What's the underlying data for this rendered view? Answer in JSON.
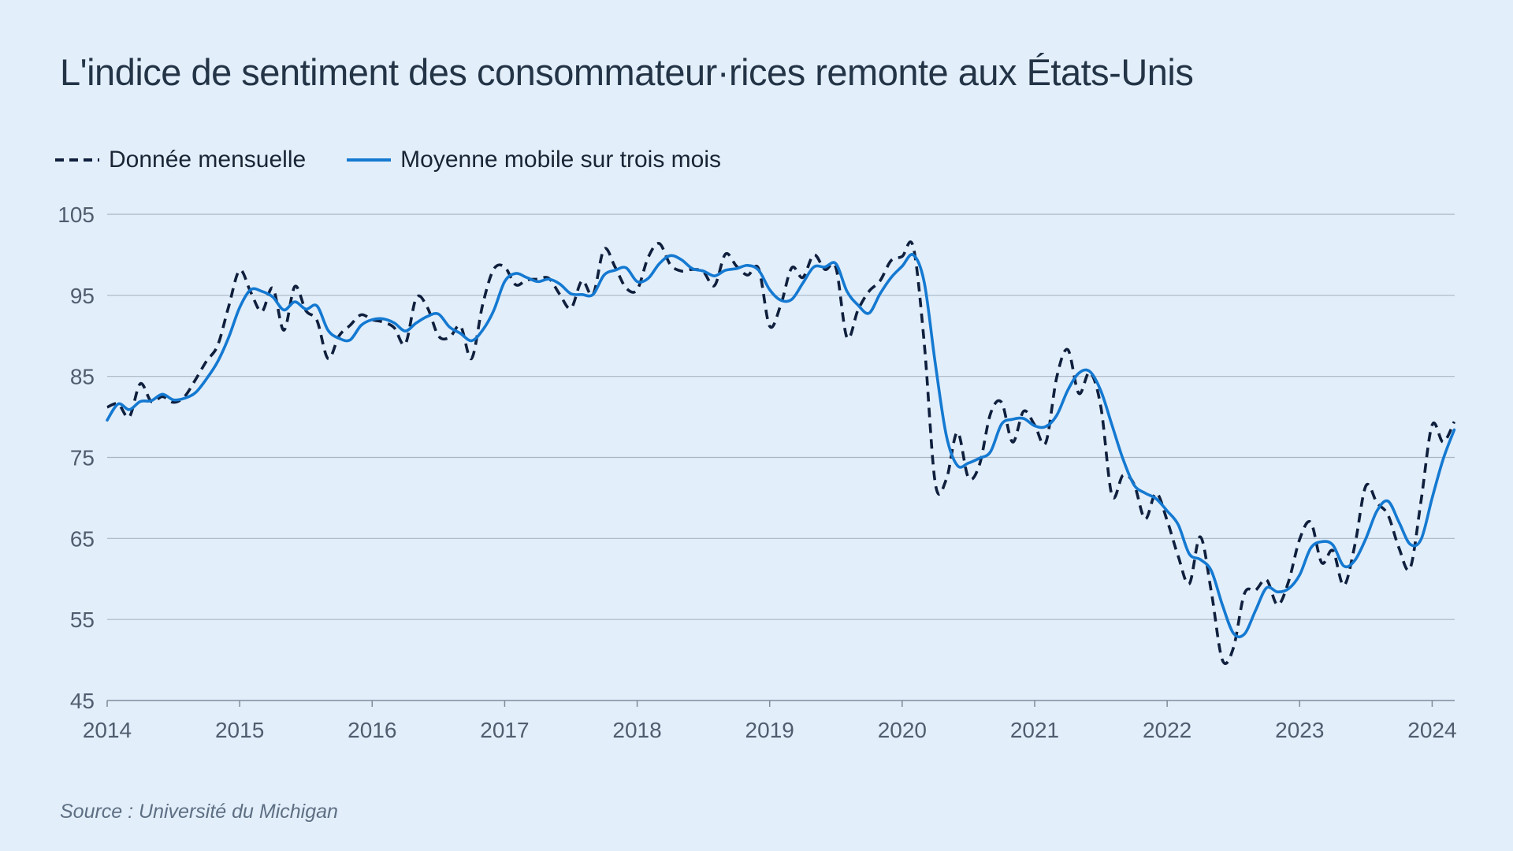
{
  "title": "L'indice de sentiment des consommateur·rices remonte aux États-Unis",
  "legend": {
    "monthly": "Donnée mensuelle",
    "moving_avg": "Moyenne mobile sur trois mois"
  },
  "source": "Source : Université du Michigan",
  "colors": {
    "background": "#e2eefa",
    "monthly": "#0f1f3d",
    "moving_avg": "#1479d1",
    "grid": "#a9b6c4"
  },
  "chart_data": {
    "type": "line",
    "title": "L'indice de sentiment des consommateur·rices remonte aux États-Unis",
    "xlabel": "",
    "ylabel": "",
    "x_range": [
      2014.0,
      2024.17
    ],
    "ylim": [
      45,
      105
    ],
    "y_ticks": [
      45,
      55,
      65,
      75,
      85,
      95,
      105
    ],
    "x_ticks": [
      2014,
      2015,
      2016,
      2017,
      2018,
      2019,
      2020,
      2021,
      2022,
      2023,
      2024
    ],
    "x_tick_labels": [
      "2014",
      "2015",
      "2016",
      "2017",
      "2018",
      "2019",
      "2020",
      "2021",
      "2022",
      "2023",
      "2024"
    ],
    "grid": true,
    "legend_position": "top-left",
    "x_start": "2014-01",
    "x_step": "month",
    "series": [
      {
        "name": "Donnée mensuelle",
        "style": "dashed",
        "values": [
          81.2,
          81.6,
          80.0,
          84.1,
          81.9,
          82.5,
          81.8,
          82.5,
          84.6,
          86.9,
          88.8,
          93.6,
          98.1,
          95.4,
          93.0,
          95.9,
          90.7,
          96.1,
          93.1,
          91.9,
          87.2,
          90.0,
          91.3,
          92.6,
          92.0,
          91.7,
          91.0,
          89.0,
          94.7,
          93.5,
          90.0,
          89.8,
          91.2,
          87.2,
          93.8,
          98.2,
          98.5,
          96.3,
          96.9,
          97.0,
          97.1,
          95.1,
          93.4,
          96.8,
          95.1,
          100.7,
          98.5,
          95.9,
          95.7,
          99.7,
          101.4,
          98.8,
          98.0,
          98.2,
          97.9,
          96.2,
          100.1,
          98.6,
          97.5,
          98.3,
          91.2,
          93.8,
          98.4,
          97.2,
          100.0,
          98.2,
          98.4,
          89.8,
          93.2,
          95.5,
          96.8,
          99.3,
          99.8,
          101.0,
          89.1,
          71.8,
          72.3,
          78.1,
          72.5,
          74.1,
          80.4,
          81.8,
          76.9,
          80.7,
          79.0,
          76.8,
          84.9,
          88.3,
          82.9,
          85.5,
          81.2,
          70.3,
          72.8,
          71.7,
          67.4,
          70.6,
          67.2,
          62.8,
          59.4,
          65.2,
          58.4,
          50.0,
          51.5,
          58.2,
          58.6,
          59.9,
          56.8,
          59.7,
          64.9,
          67.0,
          62.0,
          63.5,
          59.2,
          64.2,
          71.5,
          69.4,
          67.9,
          63.8,
          61.3,
          69.7,
          79.0,
          76.9,
          79.4
        ]
      },
      {
        "name": "Moyenne mobile sur trois mois",
        "style": "solid",
        "values": [
          79.6,
          81.6,
          80.9,
          81.9,
          82.0,
          82.8,
          82.1,
          82.3,
          83.0,
          84.7,
          86.8,
          89.8,
          93.5,
          95.7,
          95.5,
          94.8,
          93.2,
          94.2,
          93.3,
          93.7,
          90.7,
          89.7,
          89.5,
          91.3,
          92.0,
          92.1,
          91.6,
          90.6,
          91.6,
          92.4,
          92.7,
          91.1,
          90.3,
          89.4,
          90.7,
          93.1,
          96.7,
          97.7,
          97.2,
          96.7,
          97.0,
          96.4,
          95.2,
          95.1,
          95.1,
          97.5,
          98.1,
          98.4,
          96.7,
          97.1,
          98.9,
          99.9,
          99.4,
          98.3,
          98.0,
          97.4,
          98.1,
          98.3,
          98.7,
          98.1,
          95.7,
          94.4,
          94.5,
          96.5,
          98.5,
          98.5,
          98.9,
          95.5,
          93.8,
          92.8,
          95.2,
          97.2,
          98.6,
          100.0,
          96.6,
          86.6,
          77.7,
          74.0,
          74.3,
          74.9,
          75.7,
          79.1,
          79.7,
          79.8,
          78.9,
          78.8,
          80.2,
          83.3,
          85.4,
          85.6,
          83.2,
          79.0,
          74.8,
          71.6,
          70.6,
          69.9,
          68.4,
          66.7,
          63.1,
          62.4,
          61.0,
          56.8,
          53.3,
          53.2,
          56.1,
          58.9,
          58.4,
          58.8,
          60.5,
          63.8,
          64.6,
          64.2,
          61.6,
          62.3,
          65.0,
          68.4,
          69.6,
          67.0,
          64.3,
          64.9,
          70.0,
          74.8,
          78.4
        ]
      }
    ]
  }
}
